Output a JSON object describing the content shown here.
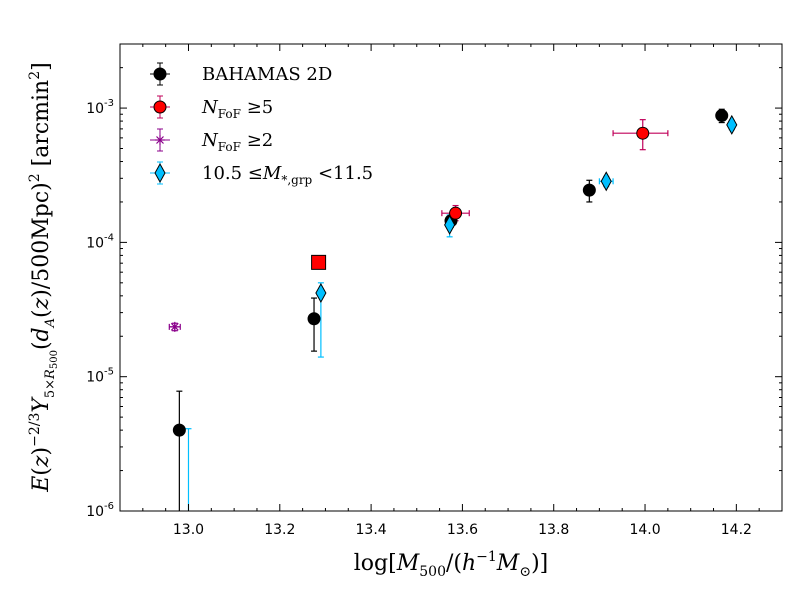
{
  "chart_data": {
    "type": "scatter",
    "title": "",
    "xlabel": "log[M_500/(h^-1 M_⊙)]",
    "ylabel": "E(z)^-2/3 Y_5×R500 (d_A(z)/500Mpc)^2 [arcmin^2]",
    "xlim": [
      12.85,
      14.3
    ],
    "ylim": [
      1e-06,
      0.003
    ],
    "yscale": "log",
    "x_ticks": [
      13.0,
      13.2,
      13.4,
      13.6,
      13.8,
      14.0,
      14.2
    ],
    "x_tick_labels": [
      "13.0",
      "13.2",
      "13.4",
      "13.6",
      "13.8",
      "14.0",
      "14.2"
    ],
    "y_ticks": [
      1e-06,
      1e-05,
      0.0001,
      0.001
    ],
    "y_tick_labels": [
      {
        "base": "10",
        "exp": "-6"
      },
      {
        "base": "10",
        "exp": "-5"
      },
      {
        "base": "10",
        "exp": "-4"
      },
      {
        "base": "10",
        "exp": "-3"
      }
    ],
    "legend_position": "top-left",
    "series": [
      {
        "name": "BAHAMAS 2D",
        "color": "#000000",
        "marker": "circle",
        "points": [
          {
            "x": 12.98,
            "y": 4e-06,
            "ylo": 1e-07,
            "yhi": 7.8e-06
          },
          {
            "x": 13.275,
            "y": 2.7e-05,
            "ylo": 1.55e-05,
            "yhi": 3.85e-05
          },
          {
            "x": 13.575,
            "y": 0.000145,
            "ylo": 0.00013,
            "yhi": 0.00016
          },
          {
            "x": 13.878,
            "y": 0.000245,
            "ylo": 0.0002,
            "yhi": 0.00029
          },
          {
            "x": 14.168,
            "y": 0.00088,
            "ylo": 0.00078,
            "yhi": 0.00098
          }
        ]
      },
      {
        "name": "N_FoF ≥ 5",
        "color": "#ff0000",
        "edge": "#000000",
        "err_color": "#c0005a",
        "marker": "circle",
        "points": [
          {
            "x": 13.585,
            "y": 0.000165,
            "xlo": 13.555,
            "xhi": 13.615,
            "ylo": 0.000145,
            "yhi": 0.000188
          },
          {
            "x": 13.995,
            "y": 0.00065,
            "xlo": 13.93,
            "xhi": 14.05,
            "ylo": 0.00049,
            "yhi": 0.00082
          }
        ],
        "square_points": [
          {
            "x": 13.285,
            "y": 7.1e-05
          }
        ]
      },
      {
        "name": "N_FoF ≥ 2",
        "color": "#8b008b",
        "marker": "star",
        "points": [
          {
            "x": 12.97,
            "y": 2.35e-05,
            "xlo": 12.958,
            "xhi": 12.982,
            "ylo": 2.2e-05,
            "yhi": 2.5e-05
          }
        ]
      },
      {
        "name": "10.5 ≤ M_*,grp < 11.5",
        "color": "#00bfff",
        "edge": "#000000",
        "marker": "diamond",
        "points": [
          {
            "x": 13.0,
            "y": 4.1e-06,
            "ylo": 1e-07,
            "yhi": 4.1e-06,
            "half": true
          },
          {
            "x": 13.29,
            "y": 4.2e-05,
            "ylo": 1.4e-05,
            "yhi": 5e-05
          },
          {
            "x": 13.572,
            "y": 0.000135,
            "ylo": 0.00011,
            "yhi": 0.00016
          },
          {
            "x": 13.915,
            "y": 0.000285,
            "xlo": 13.9,
            "xhi": 13.93,
            "ylo": 0.00026,
            "yhi": 0.00031
          },
          {
            "x": 14.19,
            "y": 0.00075,
            "ylo": 0.00069,
            "yhi": 0.00081
          }
        ]
      }
    ]
  }
}
